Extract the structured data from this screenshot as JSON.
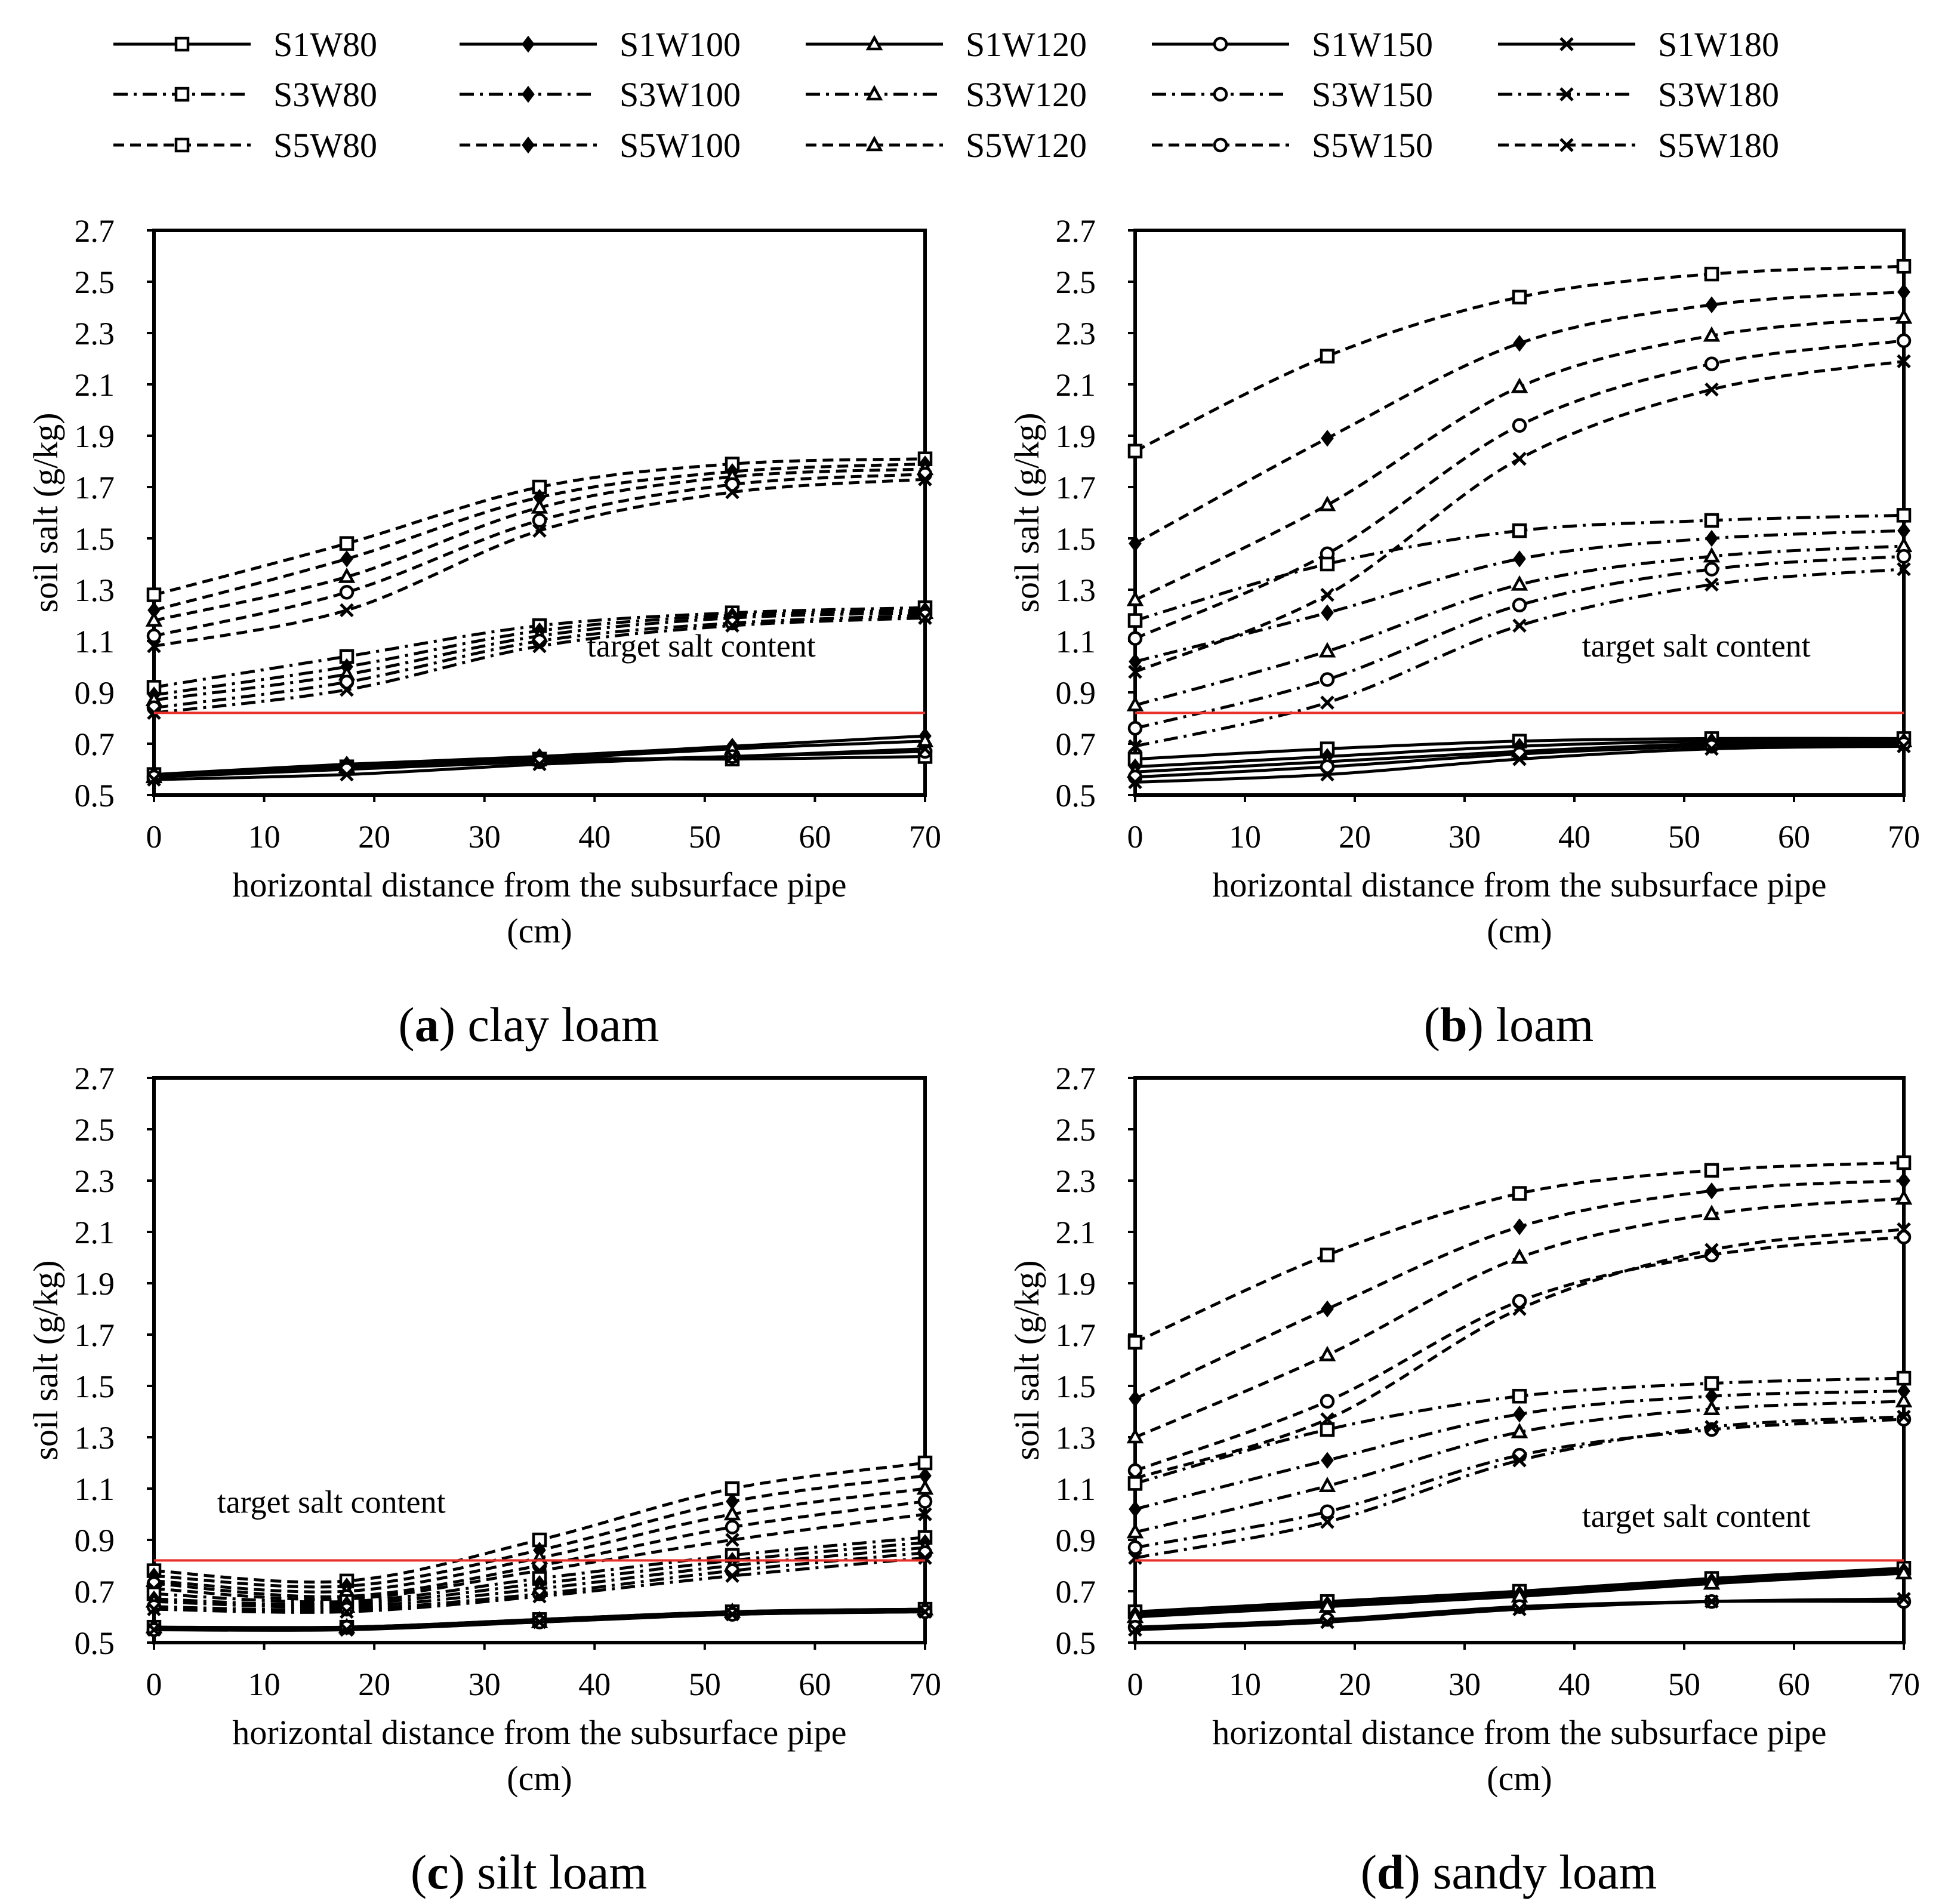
{
  "legend": {
    "entries": [
      {
        "label": "S1W80",
        "style": "solid",
        "marker": "square"
      },
      {
        "label": "S1W100",
        "style": "solid",
        "marker": "diamond"
      },
      {
        "label": "S1W120",
        "style": "solid",
        "marker": "triangle"
      },
      {
        "label": "S1W150",
        "style": "solid",
        "marker": "circle"
      },
      {
        "label": "S1W180",
        "style": "solid",
        "marker": "cross"
      },
      {
        "label": "S3W80",
        "style": "dashdot",
        "marker": "square"
      },
      {
        "label": "S3W100",
        "style": "dashdot",
        "marker": "diamond"
      },
      {
        "label": "S3W120",
        "style": "dashdot",
        "marker": "triangle"
      },
      {
        "label": "S3W150",
        "style": "dashdot",
        "marker": "circle"
      },
      {
        "label": "S3W180",
        "style": "dashdot",
        "marker": "cross"
      },
      {
        "label": "S5W80",
        "style": "dashed",
        "marker": "square"
      },
      {
        "label": "S5W100",
        "style": "dashed",
        "marker": "diamond"
      },
      {
        "label": "S5W120",
        "style": "dashed",
        "marker": "triangle"
      },
      {
        "label": "S5W150",
        "style": "dashed",
        "marker": "circle"
      },
      {
        "label": "S5W180",
        "style": "dashed",
        "marker": "cross"
      }
    ]
  },
  "colors": {
    "line": "#000000",
    "target": "#e8312a"
  },
  "chart_data": [
    {
      "type": "line",
      "panel_letter": "a",
      "caption": "clay loam",
      "xlabel_line1": "horizontal distance from the subsurface pipe",
      "xlabel_line2": "(cm)",
      "ylabel": "soil salt (g/kg)",
      "xlim": [
        0,
        70
      ],
      "ylim": [
        0.5,
        2.7
      ],
      "xticks": [
        0,
        10,
        20,
        30,
        40,
        50,
        60,
        70
      ],
      "yticks": [
        0.5,
        0.7,
        0.9,
        1.1,
        1.3,
        1.5,
        1.7,
        1.9,
        2.1,
        2.3,
        2.5,
        2.7
      ],
      "ytick_labels": [
        "0.5",
        "0.7",
        "0.9",
        "1.1",
        "1.3",
        "1.5",
        "1.7",
        "1.9",
        "2.1",
        "2.3",
        "2.5",
        "2.7"
      ],
      "x": [
        0,
        17.5,
        35,
        52.5,
        70
      ],
      "target": {
        "label": "target salt content",
        "value": 0.82
      },
      "series": [
        {
          "name": "S1W80",
          "values": [
            0.58,
            0.61,
            0.64,
            0.64,
            0.65
          ]
        },
        {
          "name": "S1W100",
          "values": [
            0.58,
            0.62,
            0.65,
            0.69,
            0.73
          ]
        },
        {
          "name": "S1W120",
          "values": [
            0.57,
            0.61,
            0.64,
            0.68,
            0.71
          ]
        },
        {
          "name": "S1W150",
          "values": [
            0.57,
            0.6,
            0.63,
            0.65,
            0.67
          ]
        },
        {
          "name": "S1W180",
          "values": [
            0.56,
            0.58,
            0.62,
            0.65,
            0.68
          ]
        },
        {
          "name": "S3W80",
          "values": [
            0.92,
            1.04,
            1.16,
            1.21,
            1.23
          ]
        },
        {
          "name": "S3W100",
          "values": [
            0.89,
            1.0,
            1.14,
            1.2,
            1.22
          ]
        },
        {
          "name": "S3W120",
          "values": [
            0.87,
            0.97,
            1.12,
            1.19,
            1.21
          ]
        },
        {
          "name": "S3W150",
          "values": [
            0.84,
            0.94,
            1.1,
            1.17,
            1.2
          ]
        },
        {
          "name": "S3W180",
          "values": [
            0.82,
            0.91,
            1.08,
            1.16,
            1.19
          ]
        },
        {
          "name": "S5W80",
          "values": [
            1.28,
            1.48,
            1.7,
            1.79,
            1.81
          ]
        },
        {
          "name": "S5W100",
          "values": [
            1.22,
            1.42,
            1.66,
            1.76,
            1.79
          ]
        },
        {
          "name": "S5W120",
          "values": [
            1.18,
            1.35,
            1.62,
            1.74,
            1.77
          ]
        },
        {
          "name": "S5W150",
          "values": [
            1.12,
            1.29,
            1.57,
            1.71,
            1.75
          ]
        },
        {
          "name": "S5W180",
          "values": [
            1.08,
            1.22,
            1.53,
            1.68,
            1.73
          ]
        }
      ]
    },
    {
      "type": "line",
      "panel_letter": "b",
      "caption": "loam",
      "xlabel_line1": "horizontal distance from the subsurface pipe",
      "xlabel_line2": "(cm)",
      "ylabel": "soil salt (g/kg)",
      "xlim": [
        0,
        70
      ],
      "ylim": [
        0.5,
        2.7
      ],
      "xticks": [
        0,
        10,
        20,
        30,
        40,
        50,
        60,
        70
      ],
      "yticks": [
        0.5,
        0.7,
        0.9,
        1.1,
        1.3,
        1.5,
        1.7,
        1.9,
        2.1,
        2.3,
        2.5,
        2.7
      ],
      "ytick_labels": [
        "0.5",
        "0.7",
        "0.9",
        "1.1",
        "1.3",
        "1.5",
        "1.7",
        "1.9",
        "2.1",
        "2.3",
        "2.5",
        "2.7"
      ],
      "x": [
        0,
        17.5,
        35,
        52.5,
        70
      ],
      "target": {
        "label": "target salt content",
        "value": 0.82
      },
      "series": [
        {
          "name": "S1W80",
          "values": [
            0.64,
            0.68,
            0.71,
            0.72,
            0.72
          ]
        },
        {
          "name": "S1W100",
          "values": [
            0.61,
            0.65,
            0.69,
            0.71,
            0.71
          ]
        },
        {
          "name": "S1W120",
          "values": [
            0.59,
            0.63,
            0.67,
            0.7,
            0.71
          ]
        },
        {
          "name": "S1W150",
          "values": [
            0.57,
            0.61,
            0.66,
            0.69,
            0.7
          ]
        },
        {
          "name": "S1W180",
          "values": [
            0.55,
            0.58,
            0.64,
            0.68,
            0.69
          ]
        },
        {
          "name": "S3W80",
          "values": [
            1.18,
            1.4,
            1.53,
            1.57,
            1.59
          ]
        },
        {
          "name": "S3W100",
          "values": [
            1.02,
            1.21,
            1.42,
            1.5,
            1.53
          ]
        },
        {
          "name": "S3W120",
          "values": [
            0.85,
            1.06,
            1.32,
            1.43,
            1.47
          ]
        },
        {
          "name": "S3W150",
          "values": [
            0.76,
            0.95,
            1.24,
            1.38,
            1.43
          ]
        },
        {
          "name": "S3W180",
          "values": [
            0.69,
            0.86,
            1.16,
            1.32,
            1.38
          ]
        },
        {
          "name": "S5W80",
          "values": [
            1.84,
            2.21,
            2.44,
            2.53,
            2.56
          ]
        },
        {
          "name": "S5W100",
          "values": [
            1.48,
            1.89,
            2.26,
            2.41,
            2.46
          ]
        },
        {
          "name": "S5W120",
          "values": [
            1.26,
            1.63,
            2.09,
            2.29,
            2.36
          ]
        },
        {
          "name": "S5W150",
          "values": [
            1.11,
            1.44,
            1.94,
            2.18,
            2.27
          ]
        },
        {
          "name": "S5W180",
          "values": [
            0.98,
            1.28,
            1.81,
            2.08,
            2.19
          ]
        }
      ]
    },
    {
      "type": "line",
      "panel_letter": "c",
      "caption": "silt loam",
      "xlabel_line1": "horizontal distance from the subsurface pipe",
      "xlabel_line2": "(cm)",
      "ylabel": "soil salt (g/kg)",
      "xlim": [
        0,
        70
      ],
      "ylim": [
        0.5,
        2.7
      ],
      "xticks": [
        0,
        10,
        20,
        30,
        40,
        50,
        60,
        70
      ],
      "yticks": [
        0.5,
        0.7,
        0.9,
        1.1,
        1.3,
        1.5,
        1.7,
        1.9,
        2.1,
        2.3,
        2.5,
        2.7
      ],
      "ytick_labels": [
        "0.5",
        "0.7",
        "0.9",
        "1.1",
        "1.3",
        "1.5",
        "1.7",
        "1.9",
        "2.1",
        "2.3",
        "2.5",
        "2.7"
      ],
      "x": [
        0,
        17.5,
        35,
        52.5,
        70
      ],
      "target": {
        "label": "target salt content",
        "value": 0.82
      },
      "series": [
        {
          "name": "S1W80",
          "values": [
            0.56,
            0.56,
            0.59,
            0.62,
            0.63
          ]
        },
        {
          "name": "S1W100",
          "values": [
            0.56,
            0.56,
            0.59,
            0.62,
            0.63
          ]
        },
        {
          "name": "S1W120",
          "values": [
            0.56,
            0.56,
            0.58,
            0.62,
            0.63
          ]
        },
        {
          "name": "S1W150",
          "values": [
            0.55,
            0.56,
            0.58,
            0.61,
            0.62
          ]
        },
        {
          "name": "S1W180",
          "values": [
            0.55,
            0.55,
            0.58,
            0.61,
            0.62
          ]
        },
        {
          "name": "S3W80",
          "values": [
            0.69,
            0.66,
            0.75,
            0.84,
            0.91
          ]
        },
        {
          "name": "S3W100",
          "values": [
            0.67,
            0.65,
            0.73,
            0.82,
            0.89
          ]
        },
        {
          "name": "S3W120",
          "values": [
            0.66,
            0.64,
            0.71,
            0.8,
            0.87
          ]
        },
        {
          "name": "S3W150",
          "values": [
            0.64,
            0.63,
            0.69,
            0.78,
            0.85
          ]
        },
        {
          "name": "S3W180",
          "values": [
            0.63,
            0.62,
            0.68,
            0.76,
            0.83
          ]
        },
        {
          "name": "S5W80",
          "values": [
            0.78,
            0.74,
            0.9,
            1.1,
            1.2
          ]
        },
        {
          "name": "S5W100",
          "values": [
            0.76,
            0.72,
            0.86,
            1.05,
            1.15
          ]
        },
        {
          "name": "S5W120",
          "values": [
            0.74,
            0.7,
            0.83,
            1.0,
            1.1
          ]
        },
        {
          "name": "S5W150",
          "values": [
            0.73,
            0.68,
            0.8,
            0.95,
            1.05
          ]
        },
        {
          "name": "S5W180",
          "values": [
            0.71,
            0.67,
            0.78,
            0.9,
            1.0
          ]
        }
      ]
    },
    {
      "type": "line",
      "panel_letter": "d",
      "caption": "sandy loam",
      "xlabel_line1": "horizontal distance from the subsurface pipe",
      "xlabel_line2": "(cm)",
      "ylabel": "soil salt (g/kg)",
      "xlim": [
        0,
        70
      ],
      "ylim": [
        0.5,
        2.7
      ],
      "xticks": [
        0,
        10,
        20,
        30,
        40,
        50,
        60,
        70
      ],
      "yticks": [
        0.5,
        0.7,
        0.9,
        1.1,
        1.3,
        1.5,
        1.7,
        1.9,
        2.1,
        2.3,
        2.5,
        2.7
      ],
      "ytick_labels": [
        "0.5",
        "0.7",
        "0.9",
        "1.1",
        "1.3",
        "1.5",
        "1.7",
        "1.9",
        "2.1",
        "2.3",
        "2.5",
        "2.7"
      ],
      "x": [
        0,
        17.5,
        35,
        52.5,
        70
      ],
      "target": {
        "label": "target salt content",
        "value": 0.82
      },
      "series": [
        {
          "name": "S1W80",
          "values": [
            0.62,
            0.66,
            0.7,
            0.75,
            0.79
          ]
        },
        {
          "name": "S1W100",
          "values": [
            0.61,
            0.65,
            0.69,
            0.74,
            0.78
          ]
        },
        {
          "name": "S1W120",
          "values": [
            0.6,
            0.64,
            0.68,
            0.73,
            0.77
          ]
        },
        {
          "name": "S1W150",
          "values": [
            0.56,
            0.59,
            0.64,
            0.66,
            0.66
          ]
        },
        {
          "name": "S1W180",
          "values": [
            0.55,
            0.58,
            0.63,
            0.66,
            0.67
          ]
        },
        {
          "name": "S3W80",
          "values": [
            1.12,
            1.33,
            1.46,
            1.51,
            1.53
          ]
        },
        {
          "name": "S3W100",
          "values": [
            1.02,
            1.21,
            1.39,
            1.46,
            1.48
          ]
        },
        {
          "name": "S3W120",
          "values": [
            0.93,
            1.11,
            1.32,
            1.41,
            1.44
          ]
        },
        {
          "name": "S3W150",
          "values": [
            0.87,
            1.01,
            1.23,
            1.33,
            1.37
          ]
        },
        {
          "name": "S3W180",
          "values": [
            0.83,
            0.97,
            1.21,
            1.34,
            1.38
          ]
        },
        {
          "name": "S5W80",
          "values": [
            1.67,
            2.01,
            2.25,
            2.34,
            2.37
          ]
        },
        {
          "name": "S5W100",
          "values": [
            1.45,
            1.8,
            2.12,
            2.26,
            2.3
          ]
        },
        {
          "name": "S5W120",
          "values": [
            1.3,
            1.62,
            2.0,
            2.17,
            2.23
          ]
        },
        {
          "name": "S5W150",
          "values": [
            1.17,
            1.44,
            1.83,
            2.01,
            2.08
          ]
        },
        {
          "name": "S5W180",
          "values": [
            1.14,
            1.37,
            1.8,
            2.03,
            2.11
          ]
        }
      ]
    }
  ]
}
